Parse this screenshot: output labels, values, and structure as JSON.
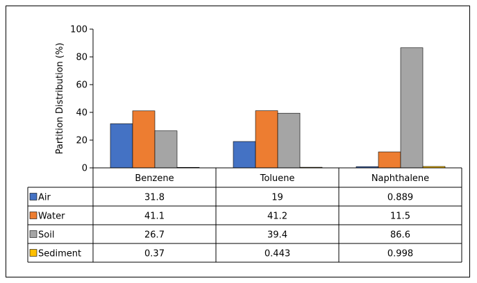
{
  "chart_data": {
    "type": "bar",
    "title": "",
    "xlabel": "",
    "ylabel": "Partition Distribution (%)",
    "ylim": [
      0,
      100
    ],
    "yticks": [
      0,
      20,
      40,
      60,
      80,
      100
    ],
    "grid": false,
    "legend": "data-table",
    "categories": [
      "Benzene",
      "Toluene",
      "Naphthalene"
    ],
    "series": [
      {
        "name": "Air",
        "color": "#4472C4",
        "values": [
          31.8,
          19,
          0.889
        ],
        "labels": [
          "31.8",
          "19",
          "0.889"
        ]
      },
      {
        "name": "Water",
        "color": "#ED7D31",
        "values": [
          41.1,
          41.2,
          11.5
        ],
        "labels": [
          "41.1",
          "41.2",
          "11.5"
        ]
      },
      {
        "name": "Soil",
        "color": "#A5A5A5",
        "values": [
          26.7,
          39.4,
          86.6
        ],
        "labels": [
          "26.7",
          "39.4",
          "86.6"
        ]
      },
      {
        "name": "Sediment",
        "color": "#FFC000",
        "values": [
          0.37,
          0.443,
          0.998
        ],
        "labels": [
          "0.37",
          "0.443",
          "0.998"
        ]
      }
    ]
  }
}
